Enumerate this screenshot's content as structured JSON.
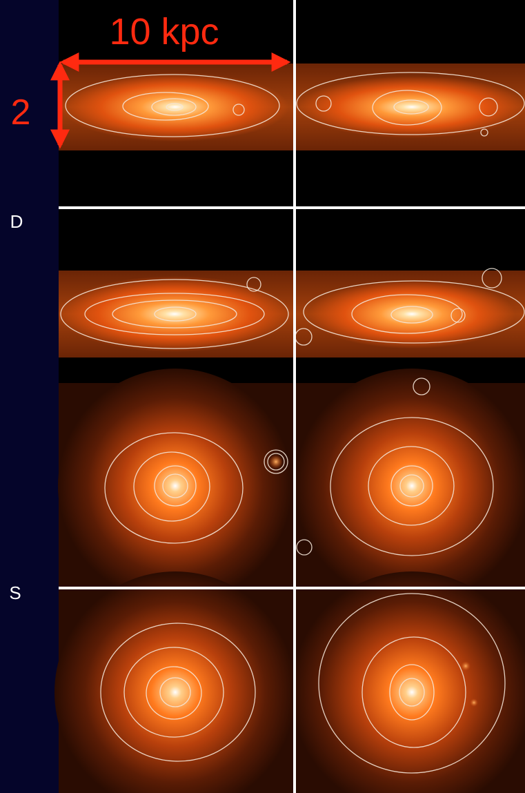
{
  "labels": {
    "scale_length": "10 kpc",
    "scale_height": "2",
    "row_disk": "D",
    "row_spheroid": "S"
  }
}
